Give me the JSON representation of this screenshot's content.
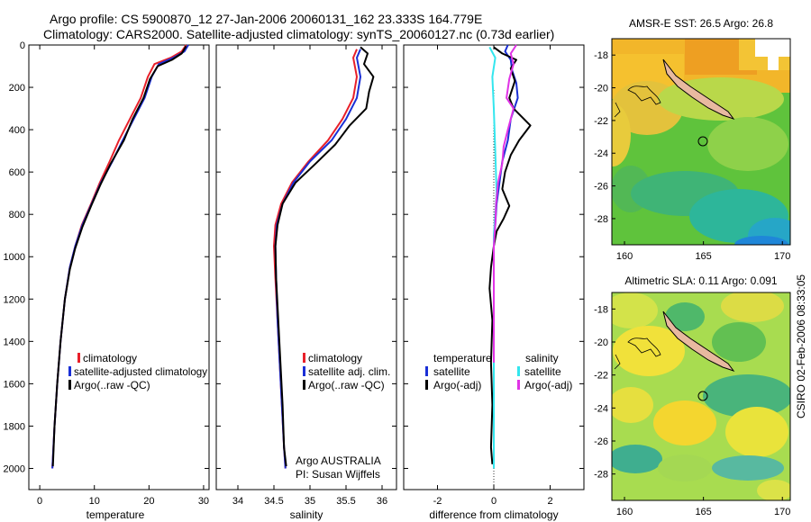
{
  "title": {
    "line1": "Argo profile: CS 5900870_12 27-Jan-2006 20060131_162 23.333S 164.779E",
    "line2": "Climatology: CARS2000. Satellite-adjusted climatology: synTS_20060127.nc (0.73d earlier)"
  },
  "credit": "CSIRO 02-Feb-2006 08:33:05",
  "annotation": {
    "line1": "Argo AUSTRALIA",
    "line2": "PI: Susan Wijffels"
  },
  "colors": {
    "clim": "#e8202a",
    "sat": "#1a2fd6",
    "argo": "#000000",
    "sat_diff_s": "#33e6ee",
    "argo_diff_s": "#e033e6"
  },
  "chart_data": [
    {
      "type": "line",
      "xlabel": "temperature",
      "xlim": [
        -2,
        31
      ],
      "ylim": [
        2100,
        0
      ],
      "xticks": [
        0,
        10,
        20,
        30
      ],
      "yticks": [
        0,
        200,
        400,
        600,
        800,
        1000,
        1200,
        1400,
        1600,
        1800,
        2000
      ],
      "legend": [
        "climatology",
        "satellite-adjusted climatology",
        "Argo(..raw -QC)"
      ],
      "series": [
        {
          "name": "climatology",
          "color": "clim",
          "points": [
            [
              26.8,
              0
            ],
            [
              26,
              30
            ],
            [
              24,
              60
            ],
            [
              21,
              90
            ],
            [
              19.8,
              150
            ],
            [
              18.5,
              250
            ],
            [
              16.5,
              350
            ],
            [
              14.5,
              450
            ],
            [
              12.8,
              550
            ],
            [
              11,
              650
            ],
            [
              9.4,
              750
            ],
            [
              7.7,
              850
            ],
            [
              6.5,
              950
            ],
            [
              5.5,
              1050
            ],
            [
              4.6,
              1200
            ],
            [
              3.8,
              1400
            ],
            [
              3.2,
              1600
            ],
            [
              2.7,
              1800
            ],
            [
              2.3,
              2000
            ]
          ]
        },
        {
          "name": "satellite-adjusted climatology",
          "color": "sat",
          "points": [
            [
              27.2,
              0
            ],
            [
              26.5,
              30
            ],
            [
              24.5,
              60
            ],
            [
              21.8,
              90
            ],
            [
              20.5,
              150
            ],
            [
              19.2,
              250
            ],
            [
              17.2,
              350
            ],
            [
              15.2,
              450
            ],
            [
              13.3,
              550
            ],
            [
              11.2,
              650
            ],
            [
              9.5,
              750
            ],
            [
              7.8,
              850
            ],
            [
              6.5,
              950
            ],
            [
              5.5,
              1050
            ],
            [
              4.6,
              1200
            ],
            [
              3.8,
              1400
            ],
            [
              3.2,
              1600
            ],
            [
              2.7,
              1800
            ],
            [
              2.3,
              2000
            ]
          ]
        },
        {
          "name": "Argo(..raw -QC)",
          "color": "argo",
          "points": [
            [
              26.8,
              5
            ],
            [
              26,
              40
            ],
            [
              24.2,
              70
            ],
            [
              21.6,
              100
            ],
            [
              20.2,
              160
            ],
            [
              19,
              250
            ],
            [
              17,
              350
            ],
            [
              15.4,
              450
            ],
            [
              13,
              560
            ],
            [
              11.1,
              660
            ],
            [
              9.4,
              760
            ],
            [
              7.8,
              860
            ],
            [
              6.5,
              960
            ],
            [
              5.5,
              1060
            ],
            [
              4.6,
              1200
            ],
            [
              3.8,
              1400
            ],
            [
              3.2,
              1600
            ],
            [
              2.7,
              1800
            ],
            [
              2.4,
              1990
            ]
          ]
        }
      ]
    },
    {
      "type": "line",
      "xlabel": "salinity",
      "xlim": [
        33.7,
        36.2
      ],
      "ylim": [
        2100,
        0
      ],
      "xticks": [
        34,
        34.5,
        35,
        35.5,
        36
      ],
      "legend": [
        "climatology",
        "satellite adj. clim.",
        "Argo(..raw -QC)"
      ],
      "series": [
        {
          "name": "climatology",
          "color": "clim",
          "points": [
            [
              35.65,
              20
            ],
            [
              35.6,
              60
            ],
            [
              35.65,
              150
            ],
            [
              35.6,
              250
            ],
            [
              35.45,
              350
            ],
            [
              35.25,
              450
            ],
            [
              34.98,
              550
            ],
            [
              34.75,
              650
            ],
            [
              34.6,
              750
            ],
            [
              34.52,
              850
            ],
            [
              34.5,
              950
            ],
            [
              34.52,
              1100
            ],
            [
              34.55,
              1300
            ],
            [
              34.58,
              1500
            ],
            [
              34.61,
              1700
            ],
            [
              34.64,
              1900
            ],
            [
              34.66,
              2000
            ]
          ]
        },
        {
          "name": "satellite adj. clim.",
          "color": "sat",
          "points": [
            [
              35.7,
              20
            ],
            [
              35.65,
              60
            ],
            [
              35.7,
              150
            ],
            [
              35.65,
              250
            ],
            [
              35.5,
              350
            ],
            [
              35.3,
              450
            ],
            [
              35.0,
              550
            ],
            [
              34.77,
              650
            ],
            [
              34.62,
              750
            ],
            [
              34.54,
              850
            ],
            [
              34.52,
              950
            ],
            [
              34.53,
              1100
            ],
            [
              34.55,
              1300
            ],
            [
              34.58,
              1500
            ],
            [
              34.61,
              1700
            ],
            [
              34.64,
              1900
            ],
            [
              34.66,
              2000
            ]
          ]
        },
        {
          "name": "Argo(..raw -QC)",
          "color": "argo",
          "points": [
            [
              35.7,
              10
            ],
            [
              35.8,
              40
            ],
            [
              35.75,
              90
            ],
            [
              35.88,
              150
            ],
            [
              35.82,
              220
            ],
            [
              35.78,
              300
            ],
            [
              35.55,
              380
            ],
            [
              35.35,
              470
            ],
            [
              35.08,
              560
            ],
            [
              34.8,
              650
            ],
            [
              34.62,
              750
            ],
            [
              34.55,
              850
            ],
            [
              34.52,
              950
            ],
            [
              34.53,
              1100
            ],
            [
              34.56,
              1300
            ],
            [
              34.59,
              1500
            ],
            [
              34.62,
              1700
            ],
            [
              34.64,
              1900
            ],
            [
              34.67,
              1990
            ]
          ]
        }
      ]
    },
    {
      "type": "line",
      "xlabel": "difference from climatology",
      "xlim": [
        -3.2,
        3.2
      ],
      "ylim": [
        2100,
        0
      ],
      "xticks": [
        -2,
        0,
        2
      ],
      "legend_left": {
        "heading": "temperature",
        "items": [
          "satellite",
          "Argo(-adj)"
        ]
      },
      "legend_right": {
        "heading": "salinity",
        "items": [
          "satellite",
          "Argo(-adj)"
        ]
      },
      "series": [
        {
          "name": "temperature satellite",
          "color": "sat",
          "points": [
            [
              0.5,
              0
            ],
            [
              0.4,
              30
            ],
            [
              0.6,
              70
            ],
            [
              0.65,
              120
            ],
            [
              0.8,
              180
            ],
            [
              0.85,
              250
            ],
            [
              0.6,
              350
            ],
            [
              0.5,
              450
            ],
            [
              0.3,
              550
            ],
            [
              0.2,
              650
            ],
            [
              0.1,
              750
            ],
            [
              0.05,
              850
            ],
            [
              0,
              950
            ],
            [
              0,
              1200
            ],
            [
              0,
              1500
            ],
            [
              0,
              1800
            ],
            [
              0,
              2000
            ]
          ]
        },
        {
          "name": "temperature Argo(-adj)",
          "color": "argo",
          "points": [
            [
              0,
              10
            ],
            [
              0.3,
              40
            ],
            [
              0.8,
              70
            ],
            [
              0.6,
              110
            ],
            [
              0.75,
              170
            ],
            [
              0.55,
              250
            ],
            [
              0.7,
              300
            ],
            [
              1.3,
              380
            ],
            [
              0.9,
              450
            ],
            [
              0.6,
              520
            ],
            [
              0.4,
              600
            ],
            [
              0.3,
              680
            ],
            [
              0.55,
              760
            ],
            [
              0.35,
              820
            ],
            [
              0.1,
              880
            ],
            [
              0,
              950
            ],
            [
              -0.1,
              1050
            ],
            [
              -0.15,
              1150
            ],
            [
              -0.05,
              1300
            ],
            [
              -0.1,
              1500
            ],
            [
              -0.05,
              1700
            ],
            [
              -0.1,
              1900
            ],
            [
              -0.05,
              1980
            ]
          ]
        },
        {
          "name": "salinity satellite",
          "color": "sat_diff_s",
          "points": [
            [
              -0.15,
              10
            ],
            [
              0.05,
              60
            ],
            [
              -0.05,
              150
            ],
            [
              0,
              300
            ],
            [
              0.05,
              500
            ],
            [
              0.1,
              700
            ],
            [
              0,
              900
            ],
            [
              0,
              1100
            ],
            [
              0,
              1400
            ],
            [
              0,
              1700
            ],
            [
              0,
              2000
            ]
          ]
        },
        {
          "name": "salinity Argo(-adj)",
          "color": "argo_diff_s",
          "points": [
            [
              0.8,
              0
            ],
            [
              0.6,
              40
            ],
            [
              0.7,
              90
            ],
            [
              0.55,
              160
            ],
            [
              0.45,
              250
            ],
            [
              0.7,
              300
            ],
            [
              0.5,
              400
            ],
            [
              0.35,
              480
            ],
            [
              0.3,
              560
            ],
            [
              0.15,
              650
            ],
            [
              0.08,
              750
            ],
            [
              0.05,
              850
            ],
            [
              0,
              950
            ],
            [
              0,
              1100
            ],
            [
              0,
              1300
            ],
            [
              0,
              1500
            ]
          ]
        }
      ]
    }
  ],
  "maps": [
    {
      "title": "AMSR-E SST: 26.5  Argo: 26.8",
      "lon_ticks": [
        160,
        165,
        170
      ],
      "lat_ticks": [
        -18,
        -20,
        -22,
        -24,
        -26,
        -28
      ],
      "marker": {
        "lon": 164.779,
        "lat": -23.333
      }
    },
    {
      "title": "Altimetric SLA: 0.11  Argo: 0.091",
      "lon_ticks": [
        160,
        165,
        170
      ],
      "lat_ticks": [
        -18,
        -20,
        -22,
        -24,
        -26,
        -28
      ],
      "marker": {
        "lon": 164.779,
        "lat": -23.333
      }
    }
  ]
}
